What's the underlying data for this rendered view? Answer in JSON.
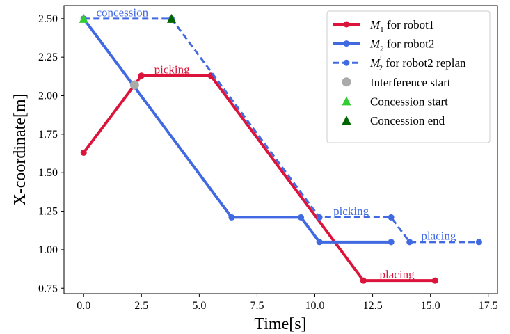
{
  "chart_data": {
    "type": "line",
    "title": "",
    "xlabel": "Time[s]",
    "ylabel": "X-coordinate[m]",
    "xlim": [
      -0.85,
      17.9
    ],
    "ylim": [
      0.715,
      2.585
    ],
    "xticks": [
      0.0,
      2.5,
      5.0,
      7.5,
      10.0,
      12.5,
      15.0,
      17.5
    ],
    "yticks": [
      0.75,
      1.0,
      1.25,
      1.5,
      1.75,
      2.0,
      2.25,
      2.5
    ],
    "xtick_labels": [
      "0.0",
      "2.5",
      "5.0",
      "7.5",
      "10.0",
      "12.5",
      "15.0",
      "17.5"
    ],
    "ytick_labels": [
      "0.75",
      "1.00",
      "1.25",
      "1.50",
      "1.75",
      "2.00",
      "2.25",
      "2.50"
    ],
    "series": [
      {
        "name": "M1 for robot1",
        "legend_main": "M",
        "legend_sub": "1",
        "legend_rest": " for robot1",
        "color": "#dc143c",
        "style": "solid",
        "x": [
          0.0,
          2.5,
          5.5,
          12.1,
          15.2
        ],
        "y": [
          1.63,
          2.13,
          2.13,
          0.8,
          0.8
        ]
      },
      {
        "name": "M2 for robot2",
        "legend_main": "M",
        "legend_sub": "2",
        "legend_rest": " for robot2",
        "color": "#4169e1",
        "style": "solid",
        "x": [
          0.0,
          6.4,
          9.4,
          10.2,
          13.3
        ],
        "y": [
          2.5,
          1.21,
          1.21,
          1.05,
          1.05
        ]
      },
      {
        "name": "M2' for robot2 replan",
        "legend_main": "M",
        "legend_sub": "2",
        "legend_sup": "′",
        "legend_rest": " for robot2 replan",
        "color": "#4169e1",
        "style": "dashed",
        "x": [
          0.0,
          3.8,
          10.2,
          13.3,
          14.1,
          17.1
        ],
        "y": [
          2.5,
          2.5,
          1.21,
          1.21,
          1.05,
          1.05
        ]
      }
    ],
    "markers": [
      {
        "name": "Interference start",
        "shape": "circle",
        "color": "#aaaaaa",
        "x": 2.2,
        "y": 2.07
      },
      {
        "name": "Concession start",
        "shape": "triangle",
        "color": "#32cd32",
        "x": 0.0,
        "y": 2.5
      },
      {
        "name": "Concession end",
        "shape": "triangle",
        "color": "#006400",
        "x": 3.8,
        "y": 2.5
      }
    ],
    "annotations": [
      {
        "text": "concession",
        "color": "#4169e1",
        "x": 0.55,
        "y": 2.515
      },
      {
        "text": "picking",
        "color": "#dc143c",
        "x": 3.05,
        "y": 2.145
      },
      {
        "text": "picking",
        "color": "#4169e1",
        "x": 10.8,
        "y": 1.225
      },
      {
        "text": "placing",
        "color": "#4169e1",
        "x": 14.6,
        "y": 1.065
      },
      {
        "text": "placing",
        "color": "#dc143c",
        "x": 12.8,
        "y": 0.815
      }
    ],
    "legend": {
      "position": "top-right",
      "entries": [
        "M1 for robot1",
        "M2 for robot2",
        "M2' for robot2 replan",
        "Interference start",
        "Concession start",
        "Concession end"
      ]
    },
    "grid": false
  }
}
